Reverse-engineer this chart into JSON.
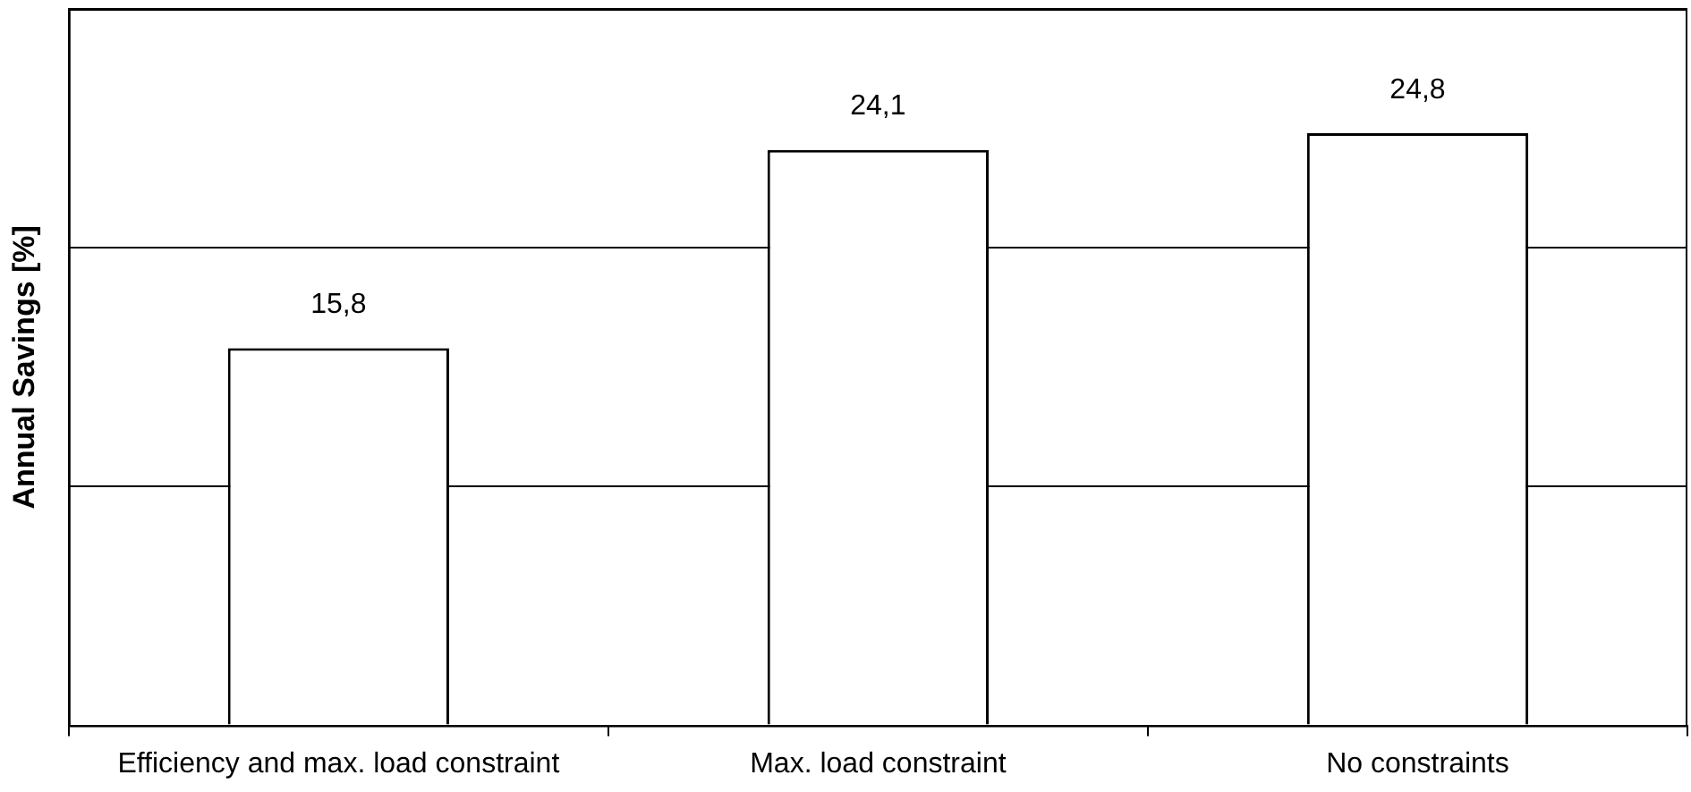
{
  "chart_data": {
    "type": "bar",
    "ylabel": "Annual Savings [%]",
    "categories": [
      "Efficiency and max. load constraint",
      "Max. load constraint",
      "No constraints"
    ],
    "values": [
      15.8,
      24.1,
      24.8
    ],
    "value_labels": [
      "15,8",
      "24,1",
      "24,8"
    ],
    "color": "#ffffff",
    "ylim": [
      0,
      30
    ],
    "yticks": [
      {
        "value": 0,
        "label": null
      },
      {
        "value": 10,
        "label": null
      },
      {
        "value": 20,
        "label": null
      },
      {
        "value": 30,
        "label": null
      }
    ],
    "grid": "y",
    "legend": false,
    "tick_labels": "x"
  }
}
